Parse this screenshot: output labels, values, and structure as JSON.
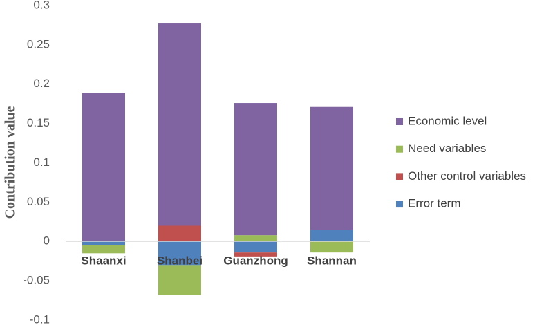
{
  "chart_data": {
    "type": "stacked_bar",
    "y_label": "Contribution value",
    "categories": [
      "Shaanxi",
      "Shanbei",
      "Guanzhong",
      "Shannan"
    ],
    "series": [
      {
        "name": "Economic level",
        "color": "#8064a2",
        "values": [
          0.189,
          0.258,
          0.168,
          0.156
        ]
      },
      {
        "name": "Need variables",
        "color": "#9bbb59",
        "values": [
          -0.01,
          -0.038,
          0.008,
          -0.014
        ]
      },
      {
        "name": "Other control variables",
        "color": "#c0504d",
        "values": [
          0,
          0.02,
          -0.005,
          0
        ]
      },
      {
        "name": "Error term",
        "color": "#4f81bd",
        "values": [
          -0.005,
          -0.03,
          -0.014,
          0.015
        ]
      }
    ],
    "ylim": [
      -0.1,
      0.3
    ],
    "yticks": [
      -0.1,
      -0.05,
      0,
      0.05,
      0.1,
      0.15,
      0.2,
      0.25,
      0.3
    ],
    "legend": "right"
  }
}
